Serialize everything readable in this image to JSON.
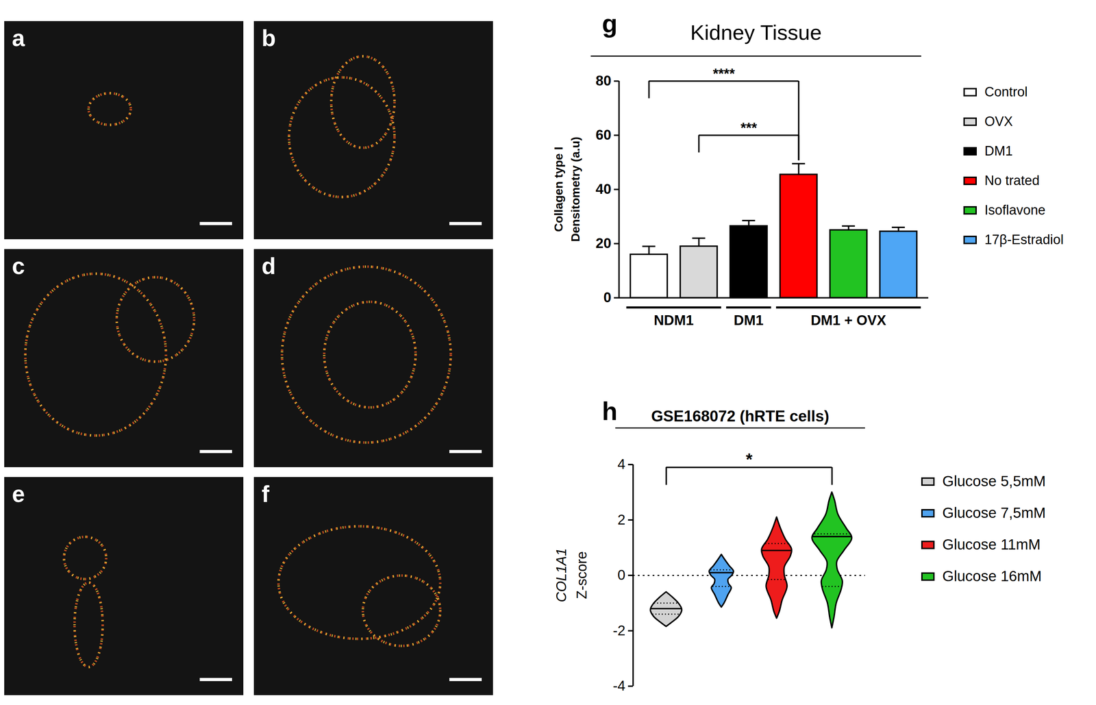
{
  "image_panels": {
    "labels": [
      "a",
      "b",
      "c",
      "d",
      "e",
      "f"
    ]
  },
  "chart_data": [
    {
      "type": "bar",
      "panel": "g",
      "title": "Kidney Tissue",
      "y_label": [
        "Collagen type I",
        "Densitometry (a.u)"
      ],
      "categories": [
        "Control",
        "OVX",
        "DM1",
        "No trated",
        "Isoflavone",
        "17β-Estradiol"
      ],
      "values": [
        16,
        19,
        26.5,
        45.5,
        25,
        24.5
      ],
      "errors": [
        3,
        3,
        2,
        4,
        1.5,
        1.5
      ],
      "colors": [
        "#ffffff",
        "#d9d9d9",
        "#000000",
        "#ff0000",
        "#22c322",
        "#4ea6f5"
      ],
      "ylim": [
        0,
        80
      ],
      "yticks": [
        0,
        20,
        40,
        60,
        80
      ],
      "tick_labels": "y",
      "legend": "right",
      "groups": [
        {
          "label": "NDM1",
          "categories": [
            "Control",
            "OVX"
          ]
        },
        {
          "label": "DM1",
          "categories": [
            "DM1"
          ]
        },
        {
          "label": "DM1 + OVX",
          "categories": [
            "No trated",
            "Isoflavone",
            "17β-Estradiol"
          ]
        }
      ],
      "significance": [
        {
          "from": "Control",
          "to": "No trated",
          "label": "****",
          "y": 80
        },
        {
          "from": "OVX",
          "to": "No trated",
          "label": "***",
          "y": 60
        }
      ]
    },
    {
      "type": "violin",
      "panel": "h",
      "title": "GSE168072 (hRTE cells)",
      "y_label": [
        "COL1A1",
        "Z-score"
      ],
      "ylim": [
        -4,
        4
      ],
      "yticks": [
        -4,
        -2,
        0,
        2,
        4
      ],
      "tick_labels": "y",
      "legend": "right",
      "reference_y": 0,
      "series": [
        {
          "name": "Glucose 5,5mM",
          "color": "#d3d3d3",
          "y": [
            -1.85,
            -1.7,
            -1.5,
            -1.3,
            -1.2,
            -1.0,
            -0.8,
            -0.6
          ],
          "half_width": [
            0,
            0.1,
            0.22,
            0.28,
            0.28,
            0.22,
            0.12,
            0
          ],
          "median": -1.2,
          "quartiles": [
            -1.4,
            -1.0
          ]
        },
        {
          "name": "Glucose 7,5mM",
          "color": "#4fa3f0",
          "y": [
            -1.15,
            -1.0,
            -0.7,
            -0.45,
            -0.3,
            -0.15,
            0.0,
            0.15,
            0.35,
            0.6,
            0.75
          ],
          "half_width": [
            0,
            0.05,
            0.12,
            0.18,
            0.13,
            0.12,
            0.19,
            0.22,
            0.14,
            0.05,
            0
          ],
          "median": 0.1,
          "quartiles": [
            -0.4,
            0.2
          ]
        },
        {
          "name": "Glucose 11mM",
          "color": "#ee1c1c",
          "y": [
            -1.55,
            -1.3,
            -0.9,
            -0.4,
            0.0,
            0.3,
            0.7,
            0.95,
            1.3,
            1.7,
            2.1
          ],
          "half_width": [
            0,
            0.05,
            0.1,
            0.19,
            0.14,
            0.14,
            0.25,
            0.27,
            0.16,
            0.07,
            0
          ],
          "median": 0.9,
          "quartiles": [
            -0.15,
            1.15
          ]
        },
        {
          "name": "Glucose 16mM",
          "color": "#22c322",
          "y": [
            -1.9,
            -1.5,
            -1.0,
            -0.5,
            -0.2,
            0.2,
            0.5,
            0.9,
            1.35,
            1.7,
            2.2,
            2.7,
            3.0
          ],
          "half_width": [
            0,
            0.04,
            0.08,
            0.17,
            0.19,
            0.1,
            0.09,
            0.22,
            0.36,
            0.26,
            0.11,
            0.05,
            0
          ],
          "median": 1.4,
          "quartiles": [
            -0.4,
            1.5
          ]
        }
      ],
      "significance": [
        {
          "from": "Glucose 5,5mM",
          "to": "Glucose 16mM",
          "label": "*",
          "y": 3.9
        }
      ]
    }
  ]
}
